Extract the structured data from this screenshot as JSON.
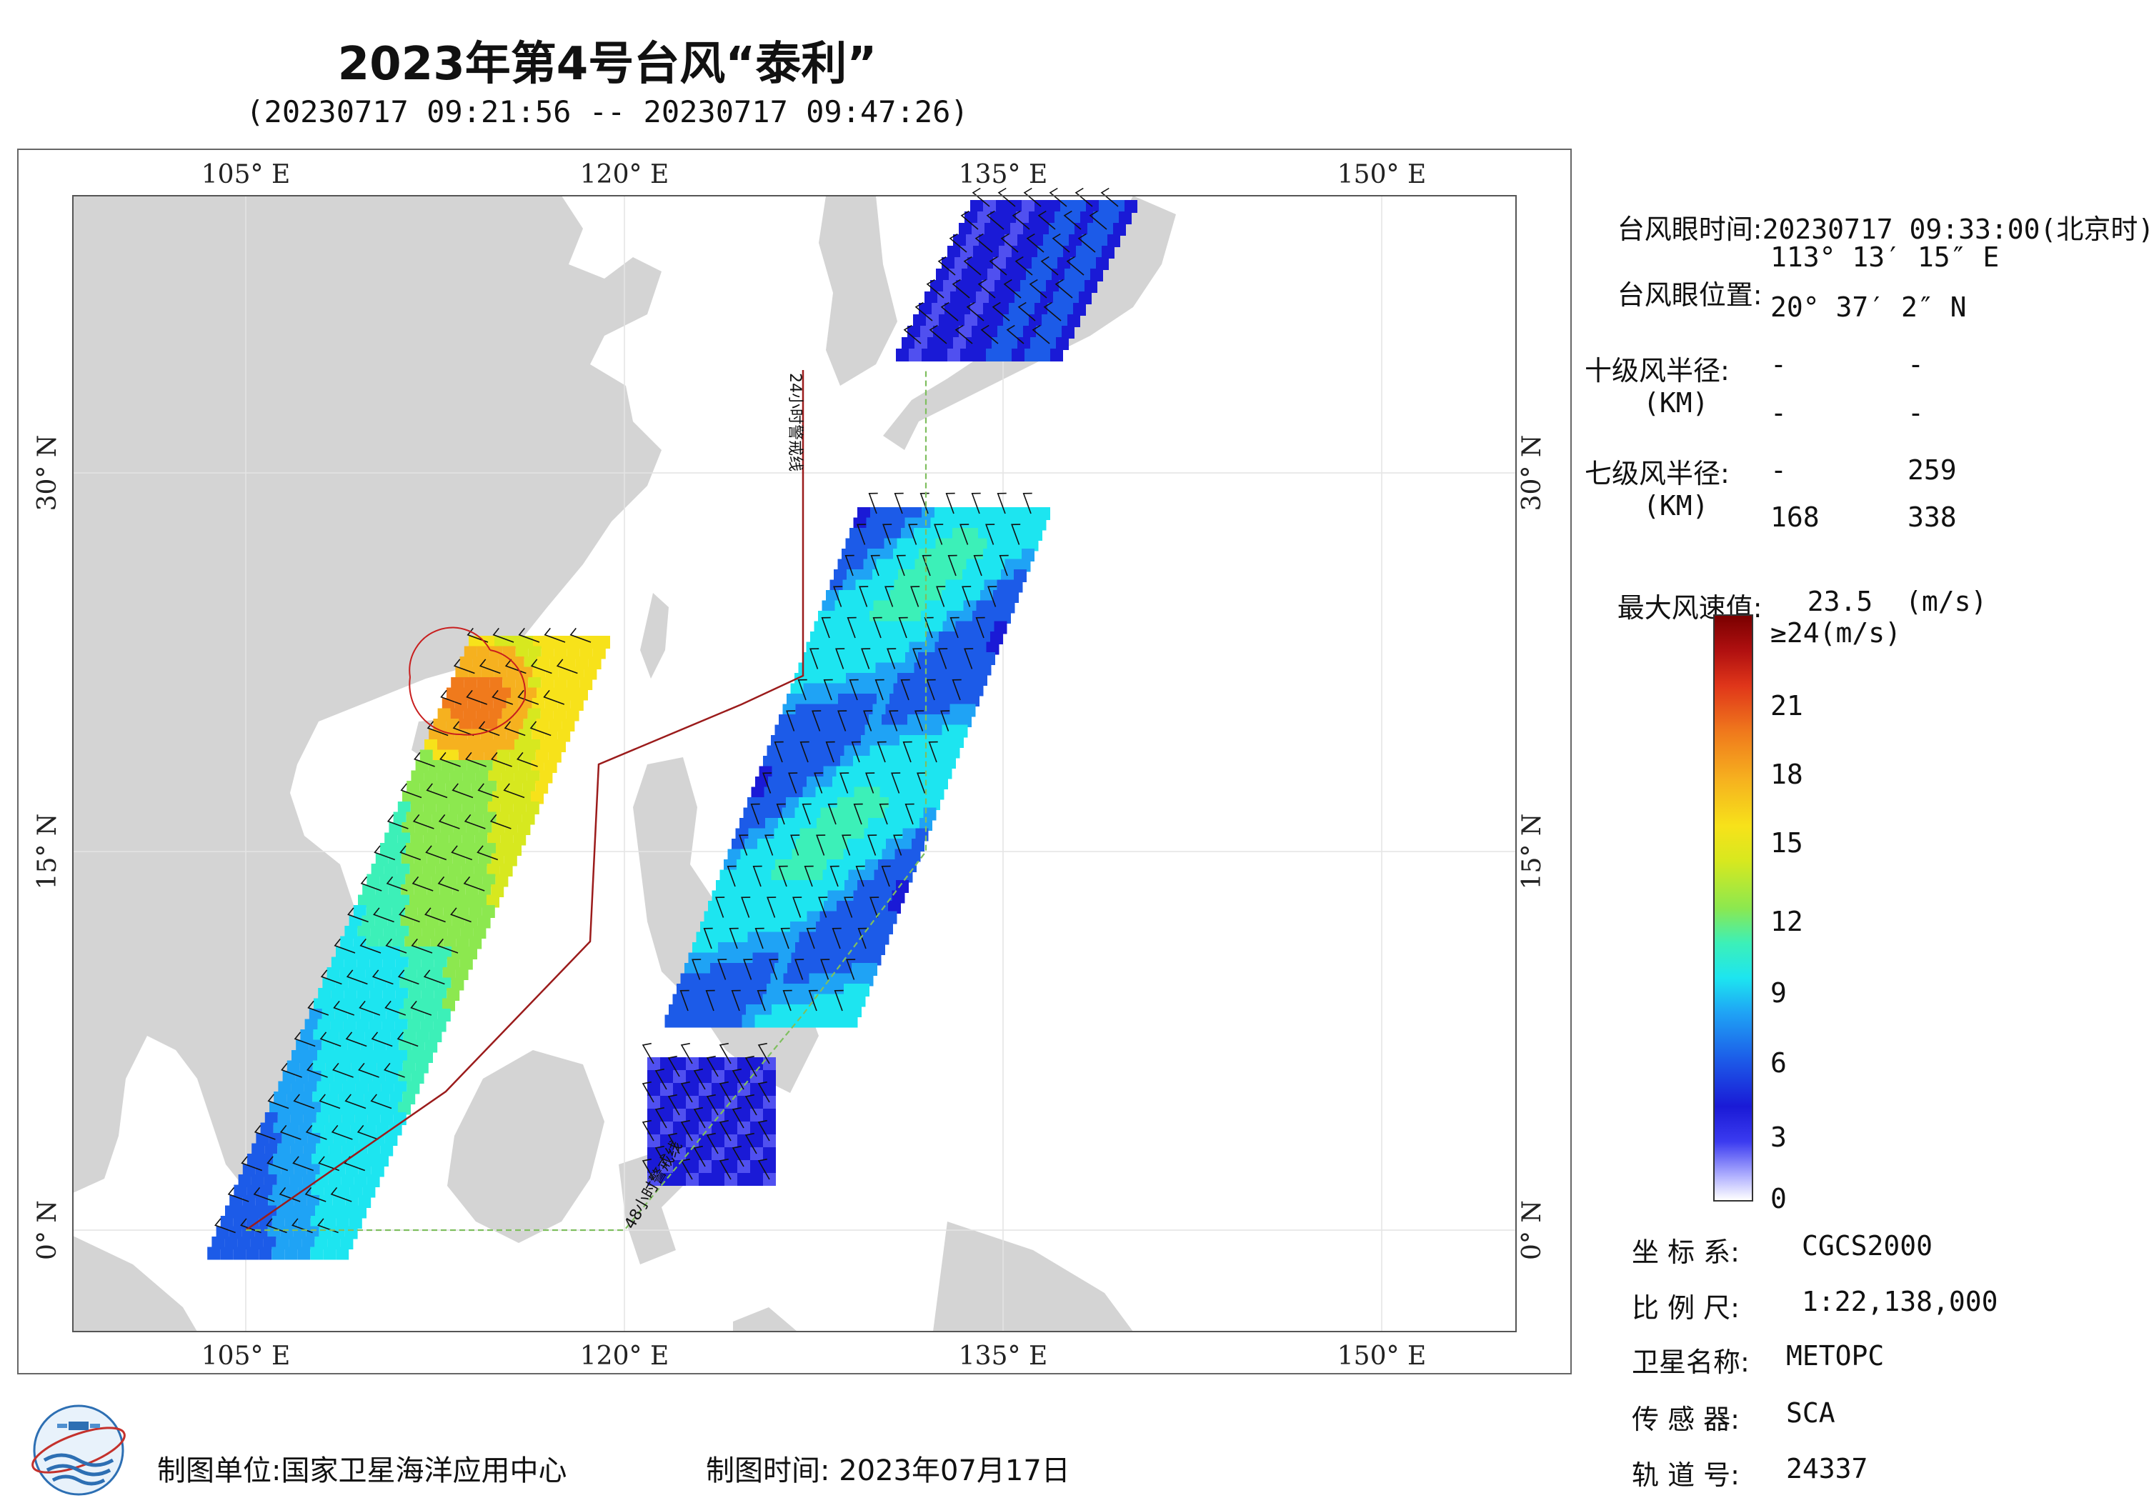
{
  "title": "2023年第4号台风“泰利”",
  "subtitle": "(20230717 09:21:56 -- 20230717 09:47:26)",
  "map": {
    "lon_top": [
      "105° E",
      "120° E",
      "135° E",
      "150° E"
    ],
    "lon_bottom": [
      "105° E",
      "120° E",
      "135° E",
      "150° E"
    ],
    "lat_left": [
      "30° N",
      "15° N",
      "0° N"
    ],
    "lat_right": [
      "30° N",
      "15° N",
      "0° N"
    ],
    "line_24h_label": "24小时警戒线",
    "line_48h_label": "48小时警戒线",
    "land_color": "#d4d4d4",
    "sea_color": "#ffffff",
    "line_24h_color": "#9b1b1b",
    "line_48h_color": "#7fbf5f"
  },
  "info": {
    "eye_time_label": "台风眼时间:",
    "eye_time_value": "20230717 09:33:00(北京时)",
    "eye_pos_label": "台风眼位置:",
    "eye_lon": "113° 13′ 15″ E",
    "eye_lat": "20° 37′ 2″ N",
    "r10_label": "十级风半径:",
    "r10_unit": "(KM)",
    "r10_values": [
      "-",
      "-",
      "-",
      "-"
    ],
    "r7_label": "七级风半径:",
    "r7_unit": "(KM)",
    "r7_values": [
      "-",
      "259",
      "168",
      "338"
    ],
    "max_wind_label": "最大风速值:",
    "max_wind_value": "23.5",
    "max_wind_unit": "(m/s)"
  },
  "colorbar": {
    "labels": [
      "≥24(m/s)",
      "21",
      "18",
      "15",
      "12",
      "9",
      "6",
      "3",
      "0"
    ],
    "min": 0,
    "max": 24
  },
  "meta": {
    "coord_label": "坐 标 系:",
    "coord_value": "CGCS2000",
    "scale_label": "比 例 尺:",
    "scale_value": "1:22,138,000",
    "satellite_label": "卫星名称:",
    "satellite_value": "METOPC",
    "sensor_label": "传 感 器:",
    "sensor_value": "SCA",
    "orbit_label": "轨 道 号:",
    "orbit_value": "24337"
  },
  "footer": {
    "unit_label": "制图单位:",
    "unit_value": "国家卫星海洋应用中心",
    "time_label": "制图时间:",
    "time_value": "2023年07月17日"
  }
}
